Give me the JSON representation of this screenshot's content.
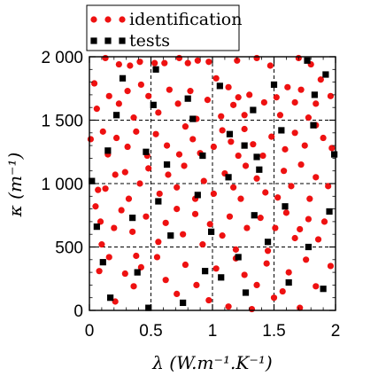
{
  "chart_data": {
    "type": "scatter",
    "xlabel": "λ (W.m⁻¹.K⁻¹)",
    "ylabel": "κ (m⁻¹)",
    "xlim": [
      0,
      2
    ],
    "ylim": [
      0,
      2000
    ],
    "xticks": [
      {
        "value": 0,
        "label": "0"
      },
      {
        "value": 0.5,
        "label": "0.5"
      },
      {
        "value": 1,
        "label": "1"
      },
      {
        "value": 1.5,
        "label": "1.5"
      },
      {
        "value": 2,
        "label": "2"
      }
    ],
    "yticks": [
      {
        "value": 0,
        "label": "0"
      },
      {
        "value": 500,
        "label": "500"
      },
      {
        "value": 1000,
        "label": "1 000"
      },
      {
        "value": 1500,
        "label": "1 500"
      },
      {
        "value": 2000,
        "label": "2 000"
      }
    ],
    "grid": "dashed at major ticks",
    "legend_position": "top-left, above plot",
    "series": [
      {
        "name": "identification",
        "marker": "circle",
        "color": "#ee1111",
        "points": [
          [
            0.04,
            1790
          ],
          [
            0.13,
            1990
          ],
          [
            0.24,
            1940
          ],
          [
            0.33,
            1930
          ],
          [
            0.41,
            1960
          ],
          [
            0.53,
            1950
          ],
          [
            0.61,
            1950
          ],
          [
            0.73,
            1990
          ],
          [
            0.8,
            1950
          ],
          [
            0.88,
            1970
          ],
          [
            0.97,
            1960
          ],
          [
            1.03,
            1830
          ],
          [
            1.2,
            1970
          ],
          [
            1.36,
            1990
          ],
          [
            1.47,
            1930
          ],
          [
            1.7,
            1990
          ],
          [
            1.8,
            1940
          ],
          [
            1.88,
            1820
          ],
          [
            0.06,
            1590
          ],
          [
            0.16,
            1690
          ],
          [
            0.24,
            1630
          ],
          [
            0.31,
            1730
          ],
          [
            0.36,
            1520
          ],
          [
            0.42,
            1780
          ],
          [
            0.48,
            1690
          ],
          [
            0.56,
            1560
          ],
          [
            0.65,
            1740
          ],
          [
            0.72,
            1630
          ],
          [
            0.82,
            1730
          ],
          [
            0.87,
            1510
          ],
          [
            0.96,
            1660
          ],
          [
            1.07,
            1530
          ],
          [
            1.13,
            1760
          ],
          [
            1.17,
            1620
          ],
          [
            1.21,
            1680
          ],
          [
            1.26,
            1540
          ],
          [
            1.3,
            1700
          ],
          [
            1.42,
            1640
          ],
          [
            1.52,
            1680
          ],
          [
            1.55,
            1540
          ],
          [
            1.61,
            1760
          ],
          [
            1.67,
            1640
          ],
          [
            1.72,
            1740
          ],
          [
            1.78,
            1520
          ],
          [
            1.84,
            1630
          ],
          [
            1.96,
            1690
          ],
          [
            0.01,
            1350
          ],
          [
            0.11,
            1410
          ],
          [
            0.15,
            1230
          ],
          [
            0.22,
            1360
          ],
          [
            0.31,
            1290
          ],
          [
            0.38,
            1410
          ],
          [
            0.47,
            1220
          ],
          [
            0.54,
            1390
          ],
          [
            0.63,
            1300
          ],
          [
            0.73,
            1230
          ],
          [
            0.78,
            1450
          ],
          [
            0.84,
            1350
          ],
          [
            0.9,
            1240
          ],
          [
            1.01,
            1290
          ],
          [
            1.08,
            1420
          ],
          [
            1.15,
            1330
          ],
          [
            1.21,
            1220
          ],
          [
            1.26,
            1430
          ],
          [
            1.33,
            1310
          ],
          [
            1.41,
            1220
          ],
          [
            1.48,
            1370
          ],
          [
            1.59,
            1270
          ],
          [
            1.67,
            1400
          ],
          [
            1.75,
            1300
          ],
          [
            1.84,
            1460
          ],
          [
            1.9,
            1360
          ],
          [
            1.97,
            1280
          ],
          [
            0.07,
            950
          ],
          [
            0.05,
            820
          ],
          [
            0.13,
            960
          ],
          [
            0.21,
            1070
          ],
          [
            0.29,
            1090
          ],
          [
            0.32,
            880
          ],
          [
            0.41,
            1000
          ],
          [
            0.48,
            1120
          ],
          [
            0.57,
            920
          ],
          [
            0.64,
            1070
          ],
          [
            0.71,
            970
          ],
          [
            0.77,
            1140
          ],
          [
            0.86,
            880
          ],
          [
            0.93,
            1020
          ],
          [
            1.01,
            920
          ],
          [
            1.1,
            1080
          ],
          [
            1.17,
            970
          ],
          [
            1.23,
            880
          ],
          [
            1.27,
            1140
          ],
          [
            1.36,
            1040
          ],
          [
            1.43,
            930
          ],
          [
            1.53,
            890
          ],
          [
            1.58,
            1100
          ],
          [
            1.64,
            980
          ],
          [
            1.72,
            1150
          ],
          [
            1.79,
            880
          ],
          [
            1.84,
            1050
          ],
          [
            1.94,
            980
          ],
          [
            0.09,
            700
          ],
          [
            0.1,
            520
          ],
          [
            0.2,
            650
          ],
          [
            0.26,
            790
          ],
          [
            0.35,
            620
          ],
          [
            0.38,
            430
          ],
          [
            0.46,
            740
          ],
          [
            0.56,
            540
          ],
          [
            0.62,
            690
          ],
          [
            0.71,
            800
          ],
          [
            0.76,
            600
          ],
          [
            0.86,
            760
          ],
          [
            0.92,
            520
          ],
          [
            0.98,
            680
          ],
          [
            1.08,
            590
          ],
          [
            1.14,
            740
          ],
          [
            1.19,
            480
          ],
          [
            1.28,
            650
          ],
          [
            1.39,
            730
          ],
          [
            1.45,
            470
          ],
          [
            1.51,
            650
          ],
          [
            1.6,
            770
          ],
          [
            1.67,
            570
          ],
          [
            1.71,
            640
          ],
          [
            1.78,
            720
          ],
          [
            1.86,
            560
          ],
          [
            1.91,
            700
          ],
          [
            0.08,
            310
          ],
          [
            0.16,
            420
          ],
          [
            0.21,
            70
          ],
          [
            0.29,
            290
          ],
          [
            0.36,
            190
          ],
          [
            0.42,
            340
          ],
          [
            0.55,
            420
          ],
          [
            0.62,
            240
          ],
          [
            0.71,
            130
          ],
          [
            0.78,
            360
          ],
          [
            0.87,
            200
          ],
          [
            0.97,
            80
          ],
          [
            1.03,
            330
          ],
          [
            1.13,
            30
          ],
          [
            1.19,
            410
          ],
          [
            1.26,
            280
          ],
          [
            1.32,
            10
          ],
          [
            1.36,
            200
          ],
          [
            1.44,
            370
          ],
          [
            1.5,
            100
          ],
          [
            1.57,
            150
          ],
          [
            1.62,
            300
          ],
          [
            1.71,
            20
          ],
          [
            1.76,
            400
          ],
          [
            1.84,
            190
          ],
          [
            1.96,
            350
          ]
        ]
      },
      {
        "name": "tests",
        "marker": "square",
        "color": "#000000",
        "points": [
          [
            0.27,
            1830
          ],
          [
            0.22,
            1540
          ],
          [
            0.54,
            1900
          ],
          [
            0.52,
            1620
          ],
          [
            0.8,
            1670
          ],
          [
            0.84,
            1510
          ],
          [
            1.06,
            1770
          ],
          [
            1.33,
            1580
          ],
          [
            1.5,
            1780
          ],
          [
            1.77,
            1970
          ],
          [
            1.83,
            1700
          ],
          [
            1.92,
            1860
          ],
          [
            0.15,
            1260
          ],
          [
            0.46,
            1250
          ],
          [
            0.63,
            1150
          ],
          [
            0.92,
            1220
          ],
          [
            1.13,
            1050
          ],
          [
            1.14,
            1390
          ],
          [
            1.26,
            1300
          ],
          [
            1.38,
            1110
          ],
          [
            1.36,
            1210
          ],
          [
            1.56,
            1420
          ],
          [
            1.82,
            1460
          ],
          [
            1.99,
            1230
          ],
          [
            0.02,
            1020
          ],
          [
            0.06,
            660
          ],
          [
            0.35,
            730
          ],
          [
            0.56,
            860
          ],
          [
            0.88,
            910
          ],
          [
            0.99,
            620
          ],
          [
            1.34,
            750
          ],
          [
            1.59,
            820
          ],
          [
            1.95,
            780
          ],
          [
            0.11,
            380
          ],
          [
            0.17,
            100
          ],
          [
            0.39,
            300
          ],
          [
            0.48,
            20
          ],
          [
            0.66,
            590
          ],
          [
            0.76,
            60
          ],
          [
            0.94,
            310
          ],
          [
            1.07,
            260
          ],
          [
            1.21,
            420
          ],
          [
            1.27,
            140
          ],
          [
            1.45,
            540
          ],
          [
            1.62,
            220
          ],
          [
            1.78,
            500
          ],
          [
            1.9,
            170
          ]
        ]
      }
    ]
  }
}
